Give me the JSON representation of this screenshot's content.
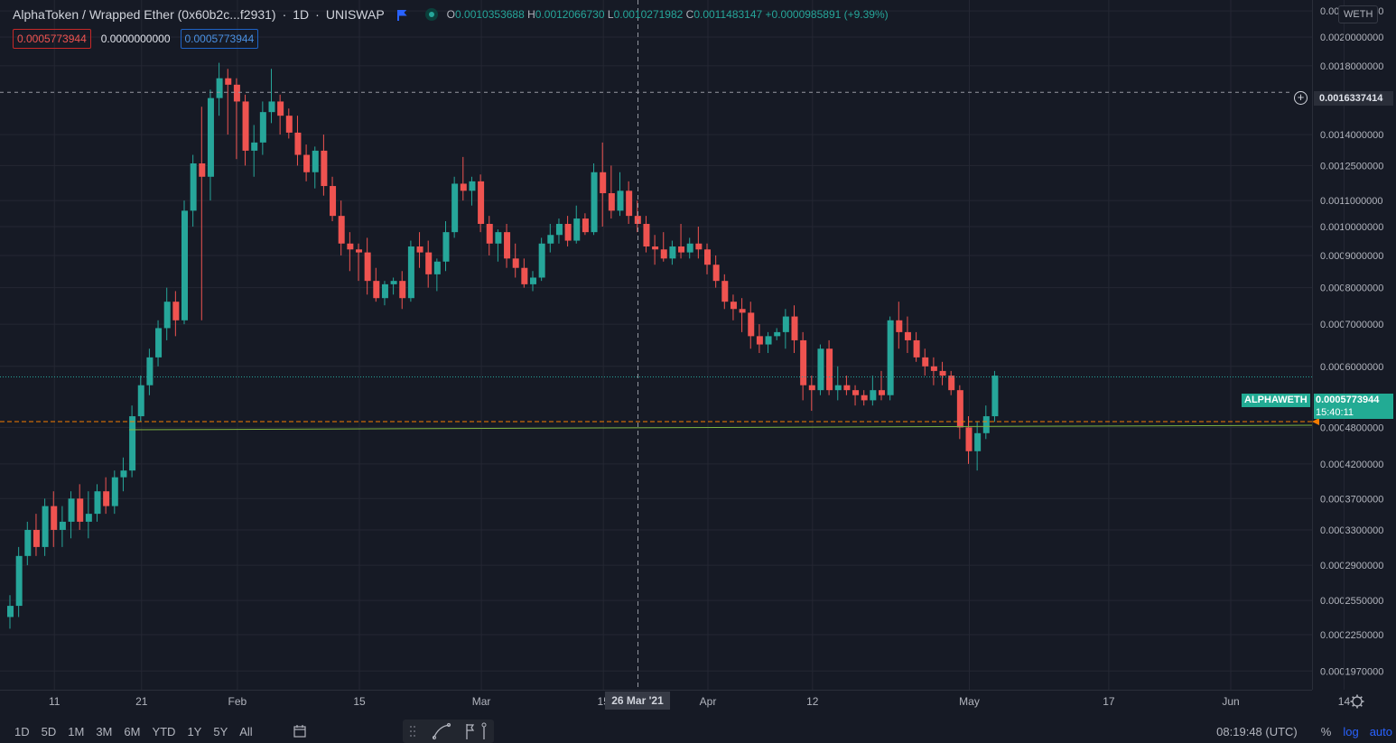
{
  "header": {
    "symbol": "AlphaToken / Wrapped Ether (0x60b2c...f2931)",
    "interval": "1D",
    "exchange": "UNISWAP",
    "ohlc": {
      "o_label": "O",
      "o": "0.0010353688",
      "h_label": "H",
      "h": "0.0012066730",
      "l_label": "L",
      "l": "0.0010271982",
      "c_label": "C",
      "c": "0.0011483147",
      "change": "+0.0000985891 (+9.39%)"
    }
  },
  "indicator_values": [
    "0.0005773944",
    "0.0000000000",
    "0.0005773944"
  ],
  "price_axis": {
    "currency_badge": "WETH",
    "labels": [
      "0.0022000000",
      "0.0020000000",
      "0.0018000000",
      "0.0014000000",
      "0.0012500000",
      "0.0011000000",
      "0.0010000000",
      "0.0009000000",
      "0.0008000000",
      "0.0007000000",
      "0.0006000000",
      "0.0004800000",
      "0.0004200000",
      "0.0003700000",
      "0.0003300000",
      "0.0002900000",
      "0.0002550000",
      "0.0002250000",
      "0.0001970000"
    ],
    "horizontal_line_price": "0.0016337414",
    "last_price": "0.0005773944",
    "countdown": "15:40:11",
    "ticker": "ALPHAWETH"
  },
  "time_axis": {
    "labels": [
      "11",
      "21",
      "Feb",
      "15",
      "Mar",
      "15",
      "Apr",
      "12",
      "May",
      "17",
      "Jun",
      "14"
    ],
    "crosshair_date": "26 Mar '21"
  },
  "bottom_bar": {
    "timeframes": [
      "1D",
      "5D",
      "1M",
      "3M",
      "6M",
      "YTD",
      "1Y",
      "5Y",
      "All"
    ],
    "clock": "08:19:48 (UTC)",
    "percent": "%",
    "log": "log",
    "auto": "auto"
  },
  "colors": {
    "up": "#26a69a",
    "down": "#ef5350",
    "background": "#161a25",
    "grid": "#242733"
  },
  "icons": [
    "live-status-icon",
    "chart-flag-icon",
    "calendar-range-icon",
    "drag-handle-icon",
    "trend-line-icon",
    "fib-tool-icon",
    "settings-gear-icon",
    "add-alert-icon"
  ],
  "chart_data": {
    "type": "candlestick",
    "x_range": [
      "2021-01-06",
      "2021-05-13"
    ],
    "y_scale": "log",
    "candles_ohlc": [
      [
        0.00024,
        0.00026,
        0.00023,
        0.00025
      ],
      [
        0.00025,
        0.00031,
        0.00024,
        0.0003
      ],
      [
        0.0003,
        0.00034,
        0.00029,
        0.00033
      ],
      [
        0.00033,
        0.00035,
        0.0003,
        0.00031
      ],
      [
        0.00031,
        0.00037,
        0.0003,
        0.00036
      ],
      [
        0.00036,
        0.00038,
        0.00031,
        0.00033
      ],
      [
        0.00033,
        0.00036,
        0.00031,
        0.00034
      ],
      [
        0.00034,
        0.00038,
        0.00032,
        0.00037
      ],
      [
        0.00037,
        0.00039,
        0.00033,
        0.00034
      ],
      [
        0.00034,
        0.00038,
        0.00032,
        0.00035
      ],
      [
        0.00035,
        0.00039,
        0.00034,
        0.00038
      ],
      [
        0.00038,
        0.0004,
        0.00035,
        0.00036
      ],
      [
        0.00036,
        0.00041,
        0.00035,
        0.0004
      ],
      [
        0.0004,
        0.00043,
        0.00038,
        0.00041
      ],
      [
        0.00041,
        0.00052,
        0.0004,
        0.0005
      ],
      [
        0.0005,
        0.00058,
        0.00049,
        0.00056
      ],
      [
        0.00056,
        0.00064,
        0.00054,
        0.00062
      ],
      [
        0.00062,
        0.00071,
        0.0006,
        0.00069
      ],
      [
        0.00069,
        0.0008,
        0.00066,
        0.00076
      ],
      [
        0.00076,
        0.00079,
        0.00067,
        0.00071
      ],
      [
        0.00071,
        0.0011,
        0.0007,
        0.00106
      ],
      [
        0.00106,
        0.0013,
        0.001,
        0.00126
      ],
      [
        0.00126,
        0.00155,
        0.00071,
        0.0012
      ],
      [
        0.0012,
        0.00165,
        0.0011,
        0.0016
      ],
      [
        0.0016,
        0.00182,
        0.0015,
        0.00172
      ],
      [
        0.00172,
        0.00178,
        0.0014,
        0.00168
      ],
      [
        0.00168,
        0.00172,
        0.00128,
        0.00158
      ],
      [
        0.00158,
        0.00162,
        0.00125,
        0.00132
      ],
      [
        0.00132,
        0.00145,
        0.0012,
        0.00136
      ],
      [
        0.00136,
        0.00158,
        0.0013,
        0.00152
      ],
      [
        0.00152,
        0.00178,
        0.00146,
        0.00158
      ],
      [
        0.00158,
        0.00162,
        0.0014,
        0.0015
      ],
      [
        0.0015,
        0.00154,
        0.00138,
        0.00141
      ],
      [
        0.00141,
        0.0015,
        0.00125,
        0.0013
      ],
      [
        0.0013,
        0.00135,
        0.00118,
        0.00122
      ],
      [
        0.00122,
        0.00134,
        0.00115,
        0.00132
      ],
      [
        0.00132,
        0.0014,
        0.00112,
        0.00116
      ],
      [
        0.00116,
        0.0012,
        0.00102,
        0.00104
      ],
      [
        0.00104,
        0.0011,
        0.0009,
        0.00094
      ],
      [
        0.00094,
        0.00098,
        0.00085,
        0.00092
      ],
      [
        0.00092,
        0.00094,
        0.00082,
        0.00091
      ],
      [
        0.00091,
        0.00096,
        0.00078,
        0.00082
      ],
      [
        0.00082,
        0.00086,
        0.00076,
        0.00077
      ],
      [
        0.00077,
        0.00082,
        0.00075,
        0.00081
      ],
      [
        0.00081,
        0.00083,
        0.00078,
        0.00082
      ],
      [
        0.00082,
        0.00085,
        0.00074,
        0.00077
      ],
      [
        0.00077,
        0.00095,
        0.00076,
        0.00093
      ],
      [
        0.00093,
        0.00098,
        0.00086,
        0.00091
      ],
      [
        0.00091,
        0.00095,
        0.0008,
        0.00084
      ],
      [
        0.00084,
        0.00089,
        0.00079,
        0.00088
      ],
      [
        0.00088,
        0.00102,
        0.00085,
        0.00098
      ],
      [
        0.00098,
        0.0012,
        0.00096,
        0.00117
      ],
      [
        0.00117,
        0.00129,
        0.0011,
        0.00114
      ],
      [
        0.00114,
        0.0012,
        0.00108,
        0.00118
      ],
      [
        0.00118,
        0.00121,
        0.00098,
        0.00101
      ],
      [
        0.00101,
        0.00104,
        0.0009,
        0.00094
      ],
      [
        0.00094,
        0.00099,
        0.00088,
        0.00098
      ],
      [
        0.00098,
        0.00101,
        0.00086,
        0.00089
      ],
      [
        0.00089,
        0.00094,
        0.00083,
        0.00086
      ],
      [
        0.00086,
        0.00089,
        0.0008,
        0.00081
      ],
      [
        0.00081,
        0.00085,
        0.00079,
        0.00083
      ],
      [
        0.00083,
        0.00096,
        0.00082,
        0.00094
      ],
      [
        0.00094,
        0.00101,
        0.00091,
        0.00097
      ],
      [
        0.00097,
        0.00103,
        0.00094,
        0.00101
      ],
      [
        0.00101,
        0.00104,
        0.00093,
        0.00095
      ],
      [
        0.00095,
        0.00108,
        0.00094,
        0.00103
      ],
      [
        0.00103,
        0.00105,
        0.00097,
        0.00098
      ],
      [
        0.00098,
        0.00126,
        0.00097,
        0.00122
      ],
      [
        0.00122,
        0.00136,
        0.001,
        0.00113
      ],
      [
        0.00113,
        0.00125,
        0.00103,
        0.00106
      ],
      [
        0.00106,
        0.00122,
        0.00104,
        0.00114
      ],
      [
        0.00114,
        0.00118,
        0.00101,
        0.00104
      ],
      [
        0.00104,
        0.0011,
        0.00098,
        0.00101
      ],
      [
        0.00101,
        0.00104,
        0.00091,
        0.00093
      ],
      [
        0.00093,
        0.00097,
        0.00087,
        0.00092
      ],
      [
        0.00092,
        0.00098,
        0.00088,
        0.00089
      ],
      [
        0.00089,
        0.00095,
        0.00087,
        0.00093
      ],
      [
        0.00093,
        0.00101,
        0.00089,
        0.00091
      ],
      [
        0.00091,
        0.00096,
        0.00089,
        0.00094
      ],
      [
        0.00094,
        0.001,
        0.00089,
        0.00092
      ],
      [
        0.00092,
        0.00094,
        0.00084,
        0.00087
      ],
      [
        0.00087,
        0.0009,
        0.0008,
        0.00082
      ],
      [
        0.00082,
        0.00084,
        0.00074,
        0.00076
      ],
      [
        0.00076,
        0.00078,
        0.00071,
        0.00074
      ],
      [
        0.00074,
        0.00077,
        0.00068,
        0.00073
      ],
      [
        0.00073,
        0.00076,
        0.00064,
        0.00067
      ],
      [
        0.00067,
        0.0007,
        0.00063,
        0.00065
      ],
      [
        0.00065,
        0.00068,
        0.00063,
        0.00067
      ],
      [
        0.00067,
        0.00069,
        0.00066,
        0.00068
      ],
      [
        0.00068,
        0.00074,
        0.00064,
        0.00072
      ],
      [
        0.00072,
        0.00075,
        0.00063,
        0.00066
      ],
      [
        0.00066,
        0.00068,
        0.00053,
        0.00056
      ],
      [
        0.00056,
        0.00058,
        0.00051,
        0.00055
      ],
      [
        0.00055,
        0.00065,
        0.00054,
        0.00064
      ],
      [
        0.00064,
        0.00066,
        0.00054,
        0.00055
      ],
      [
        0.00055,
        0.0006,
        0.00053,
        0.00056
      ],
      [
        0.00056,
        0.00058,
        0.00054,
        0.00055
      ],
      [
        0.00055,
        0.00056,
        0.00052,
        0.00054
      ],
      [
        0.00054,
        0.00055,
        0.00052,
        0.00053
      ],
      [
        0.00053,
        0.00058,
        0.00052,
        0.00055
      ],
      [
        0.00055,
        0.00059,
        0.00053,
        0.00054
      ],
      [
        0.00054,
        0.00072,
        0.00053,
        0.00071
      ],
      [
        0.00071,
        0.00076,
        0.00064,
        0.00068
      ],
      [
        0.00068,
        0.00072,
        0.00063,
        0.00066
      ],
      [
        0.00066,
        0.00068,
        0.00061,
        0.00062
      ],
      [
        0.00062,
        0.00064,
        0.00058,
        0.0006
      ],
      [
        0.0006,
        0.00062,
        0.00056,
        0.00059
      ],
      [
        0.00059,
        0.00061,
        0.00056,
        0.00058
      ],
      [
        0.00058,
        0.00059,
        0.00054,
        0.00055
      ],
      [
        0.00055,
        0.00056,
        0.00046,
        0.00048
      ],
      [
        0.00048,
        0.0005,
        0.00042,
        0.00044
      ],
      [
        0.00044,
        0.00049,
        0.00041,
        0.00047
      ],
      [
        0.00047,
        0.00052,
        0.00046,
        0.0005
      ],
      [
        0.0005,
        0.00059,
        0.00049,
        0.00058
      ]
    ]
  }
}
